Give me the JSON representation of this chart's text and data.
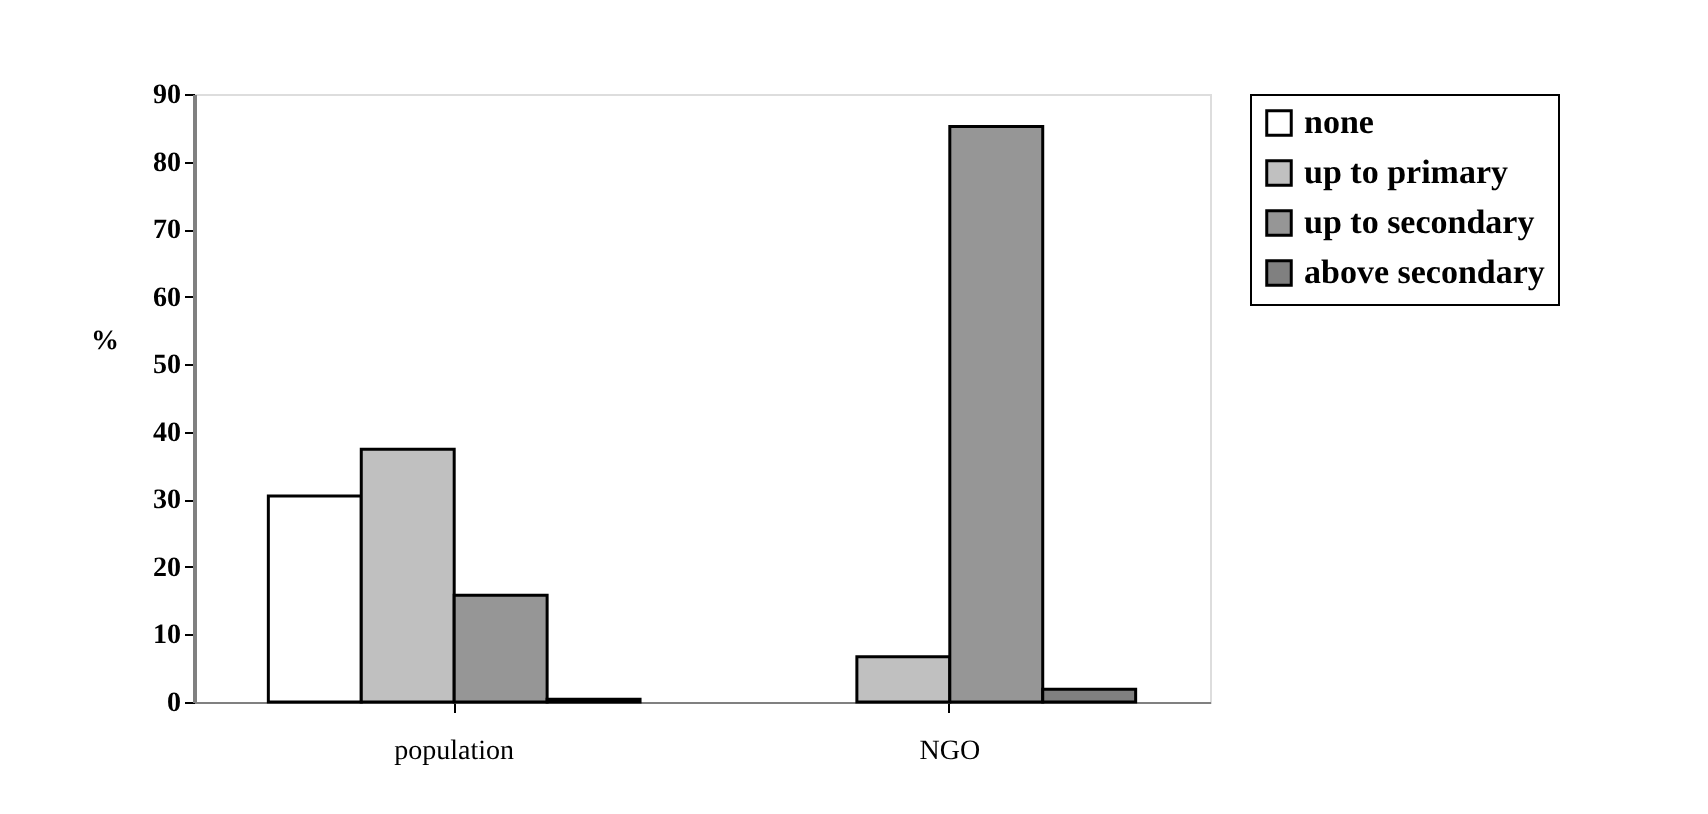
{
  "chart_data": {
    "type": "bar",
    "ylabel": "%",
    "categories": [
      "population",
      "NGO"
    ],
    "series": [
      {
        "name": "none",
        "color": "#ffffff",
        "values": [
          30.5,
          0
        ]
      },
      {
        "name": "up to primary",
        "color": "#c0c0c0",
        "values": [
          37.4,
          6.7
        ]
      },
      {
        "name": "up to secondary",
        "color": "#969696",
        "values": [
          15.8,
          85.2
        ]
      },
      {
        "name": "above secondary",
        "color": "#808080",
        "values": [
          0.4,
          1.9
        ]
      }
    ],
    "ylim": [
      0,
      90
    ],
    "yticks": [
      0,
      10,
      20,
      30,
      40,
      50,
      60,
      70,
      80,
      90
    ],
    "grid": false,
    "legend": "right"
  }
}
